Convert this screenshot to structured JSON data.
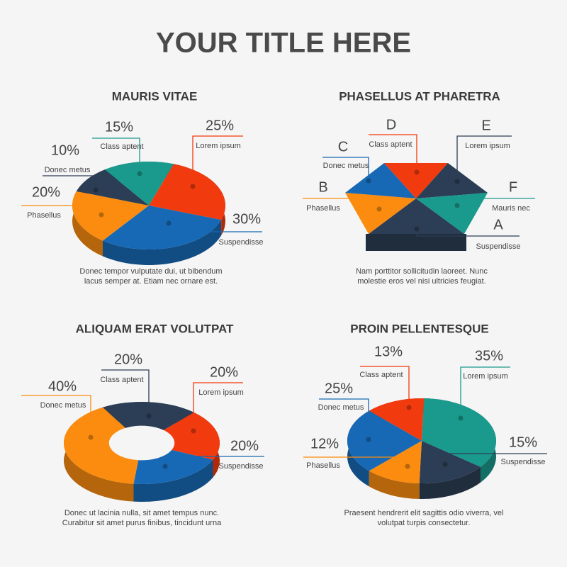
{
  "title": "YOUR TITLE HERE",
  "chart_data": [
    {
      "type": "pie",
      "title": "MAURIS VITAE",
      "categories": [
        "Class aptent",
        "Lorem ipsum",
        "Suspendisse",
        "Phasellus",
        "Donec metus"
      ],
      "values": [
        15,
        25,
        30,
        20,
        10
      ],
      "value_labels": [
        "15%",
        "25%",
        "30%",
        "20%",
        "10%"
      ],
      "colors": [
        "#1a9a8c",
        "#f23a0f",
        "#1769b5",
        "#fb8c0f",
        "#2c3e55"
      ],
      "caption": [
        "Donec tempor vulputate dui, ut bibendum",
        "lacus semper at. Etiam nec ornare est."
      ]
    },
    {
      "type": "pyramid",
      "title": "PHASELLUS AT PHARETRA",
      "letters": [
        "A",
        "B",
        "C",
        "D",
        "E",
        "F"
      ],
      "categories": [
        "Suspendisse",
        "Phasellus",
        "Donec metus",
        "Class aptent",
        "Lorem ipsum",
        "Mauris nec"
      ],
      "colors": [
        "#2c3e55",
        "#fb8c0f",
        "#1769b5",
        "#f23a0f",
        "#2c3e55",
        "#1a9a8c"
      ],
      "caption": [
        "Nam porttitor sollicitudin laoreet. Nunc",
        "molestie eros vel nisi ultricies feugiat."
      ]
    },
    {
      "type": "donut",
      "title": "ALIQUAM ERAT VOLUTPAT",
      "categories": [
        "Class aptent",
        "Lorem ipsum",
        "Suspendisse",
        "Donec metus"
      ],
      "values": [
        20,
        20,
        20,
        40
      ],
      "value_labels": [
        "20%",
        "20%",
        "20%",
        "40%"
      ],
      "colors": [
        "#2c3e55",
        "#f23a0f",
        "#1769b5",
        "#fb8c0f"
      ],
      "caption": [
        "Donec ut lacinia nulla, sit amet tempus nunc.",
        "Curabitur sit amet purus finibus, tincidunt urna"
      ]
    },
    {
      "type": "pie",
      "title": "PROIN PELLENTESQUE",
      "categories": [
        "Class aptent",
        "Lorem ipsum",
        "Suspendisse",
        "Phasellus",
        "Donec metus"
      ],
      "values": [
        13,
        35,
        15,
        12,
        25
      ],
      "value_labels": [
        "13%",
        "35%",
        "15%",
        "12%",
        "25%"
      ],
      "colors": [
        "#f23a0f",
        "#1a9a8c",
        "#2c3e55",
        "#fb8c0f",
        "#1769b5"
      ],
      "caption": [
        "Praesent hendrerit elit sagittis odio viverra, vel",
        "volutpat turpis consectetur."
      ]
    }
  ]
}
